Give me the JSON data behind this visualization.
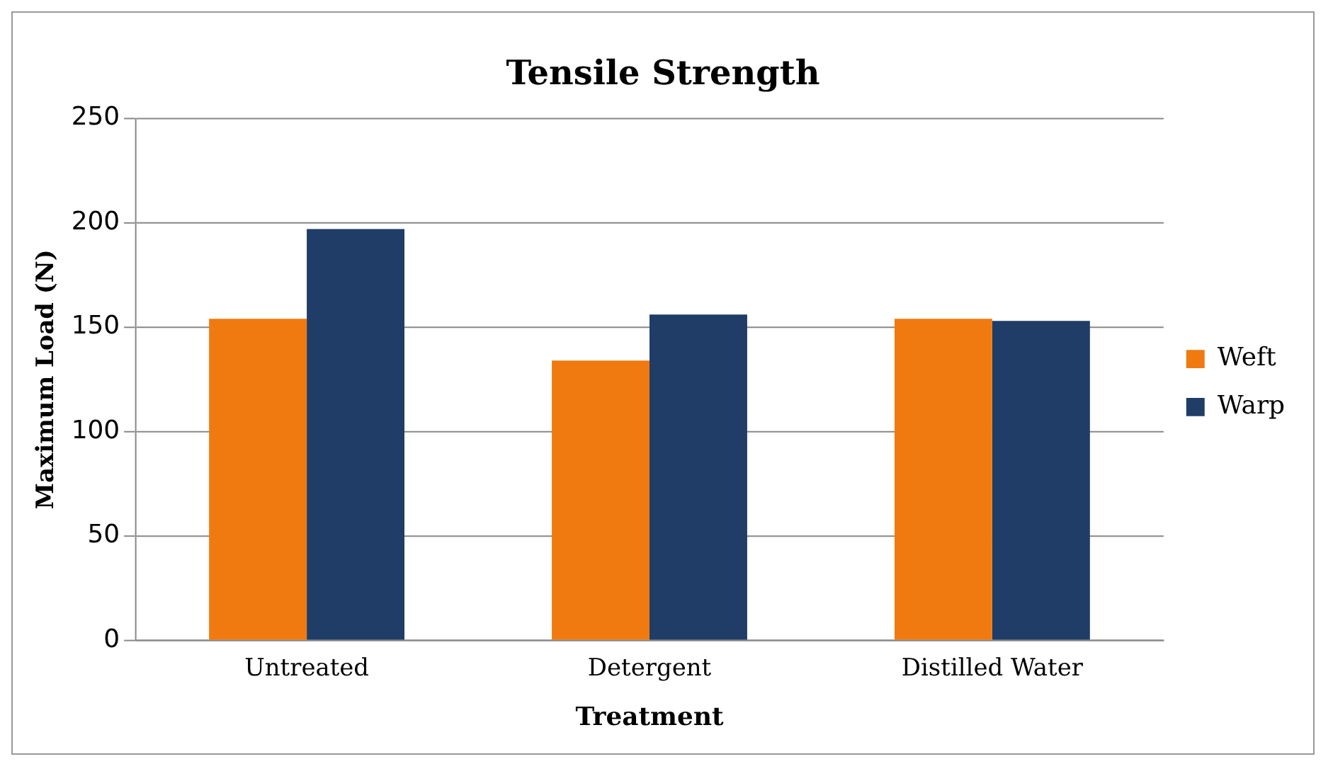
{
  "chart_data": {
    "type": "bar",
    "title": "Tensile Strength",
    "xlabel": "Treatment",
    "ylabel": "Maximum Load (N)",
    "categories": [
      "Untreated",
      "Detergent",
      "Distilled Water"
    ],
    "series": [
      {
        "name": "Weft",
        "color": "#f07a10",
        "values": [
          154,
          134,
          154
        ]
      },
      {
        "name": "Warp",
        "color": "#1f3d66",
        "values": [
          197,
          156,
          153
        ]
      }
    ],
    "ylim": [
      0,
      250
    ],
    "yticks": [
      0,
      50,
      100,
      150,
      200,
      250
    ],
    "grid": "y",
    "legend": "right"
  }
}
